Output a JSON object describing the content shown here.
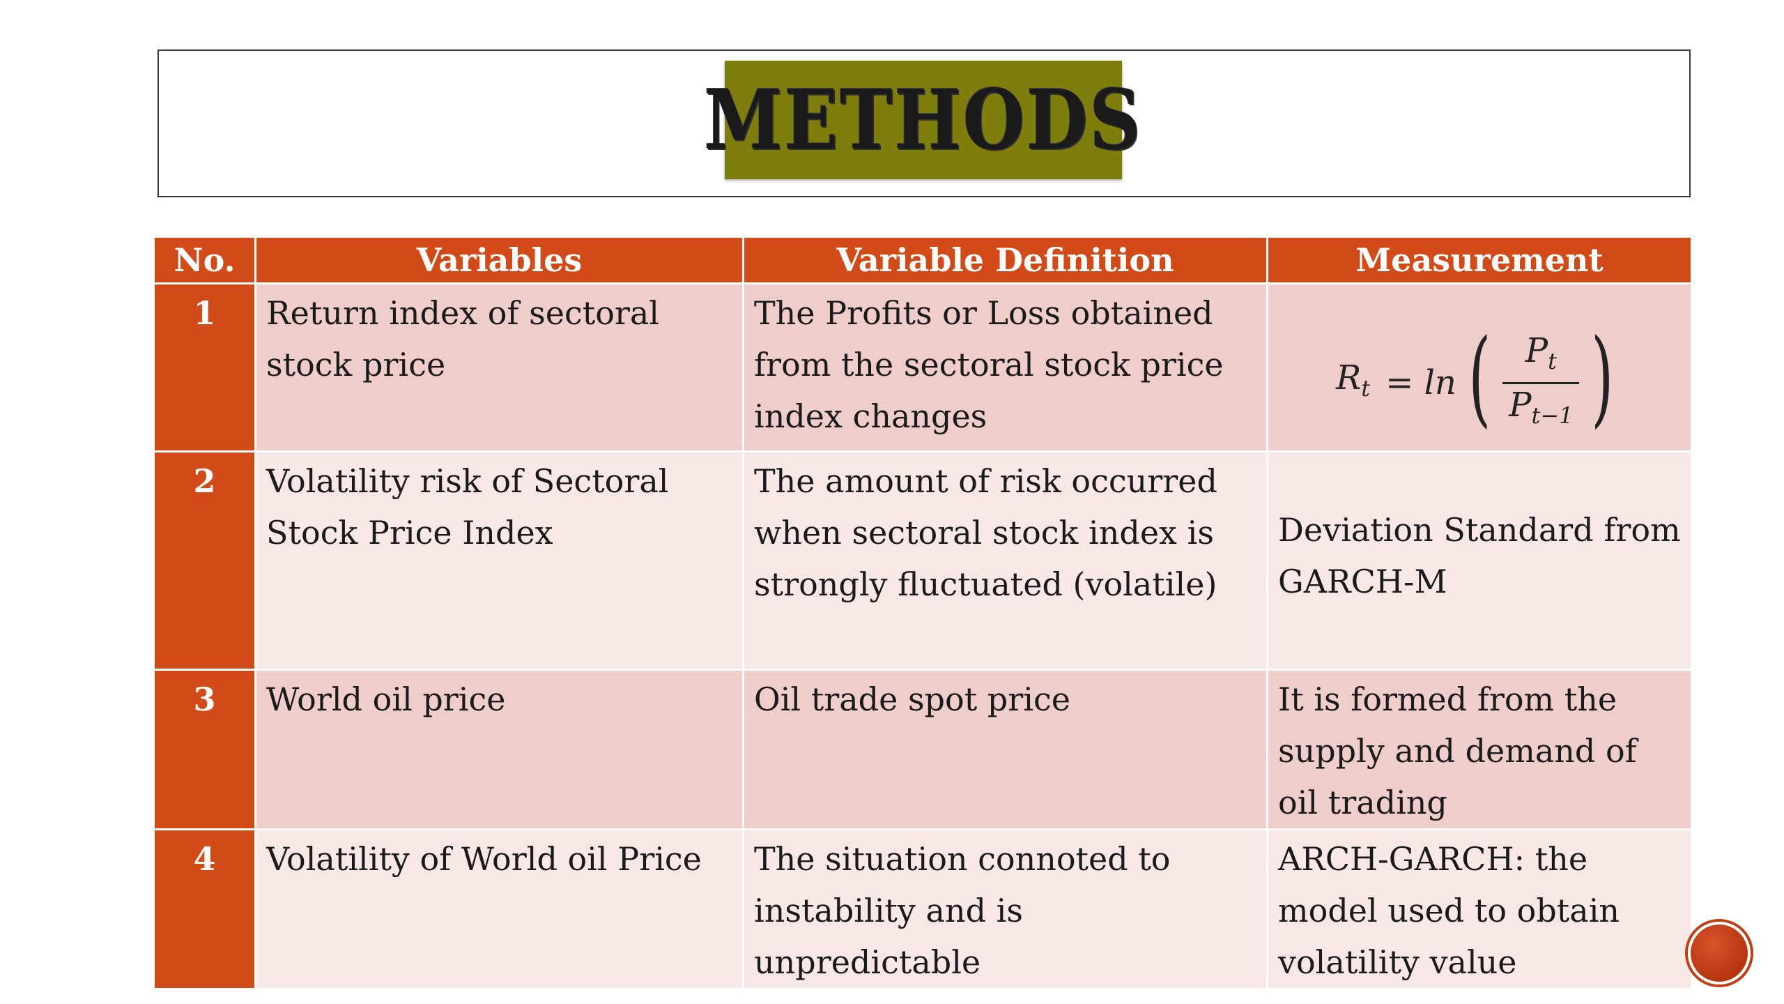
{
  "slide": {
    "title": "METHODS"
  },
  "table": {
    "headers": {
      "no": "No.",
      "variables": "Variables",
      "definition": "Variable Definition",
      "measurement": "Measurement"
    },
    "rows": [
      {
        "no": "1",
        "variable": "Return index of sectoral stock price",
        "definition": "The Profits or Loss obtained from the sectoral stock price index changes",
        "measurement_formula": {
          "lhs": "R",
          "lhs_sub": "t",
          "op": "= ln",
          "num": "P",
          "num_sub": "t",
          "den": "P",
          "den_sub": "t−1"
        }
      },
      {
        "no": "2",
        "variable": "Volatility risk of Sectoral Stock Price Index",
        "definition": "The amount of risk occurred when sectoral stock index is strongly fluctuated (volatile)",
        "measurement": "Deviation Standard from GARCH-M"
      },
      {
        "no": "3",
        "variable": "World oil price",
        "definition": "Oil trade spot price",
        "measurement": "It is formed from the supply and demand of oil trading"
      },
      {
        "no": "4",
        "variable": "Volatility of World oil Price",
        "definition": "The situation connoted to instability and is unpredictable",
        "measurement": "ARCH-GARCH: the model used to obtain volatility value"
      }
    ]
  }
}
